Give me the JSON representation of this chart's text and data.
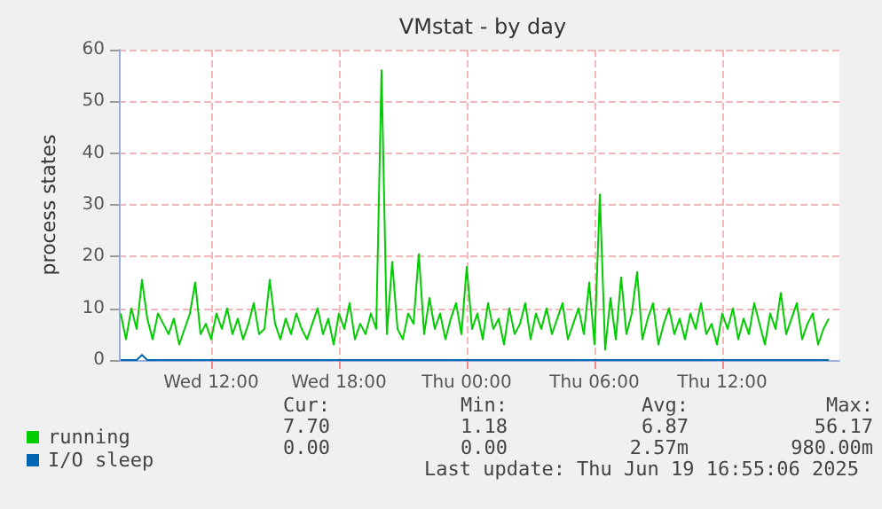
{
  "chart_data": {
    "type": "line",
    "title": "VMstat - by day",
    "ylabel": "process states",
    "x": [
      "2025-06-18T07:45",
      "2025-06-18T08:00",
      "2025-06-18T08:15",
      "2025-06-18T08:30",
      "2025-06-18T08:45",
      "2025-06-18T09:00",
      "2025-06-18T09:15",
      "2025-06-18T09:30",
      "2025-06-18T09:45",
      "2025-06-18T10:00",
      "2025-06-18T10:15",
      "2025-06-18T10:30",
      "2025-06-18T10:45",
      "2025-06-18T11:00",
      "2025-06-18T11:15",
      "2025-06-18T11:30",
      "2025-06-18T11:45",
      "2025-06-18T12:00",
      "2025-06-18T12:15",
      "2025-06-18T12:30",
      "2025-06-18T12:45",
      "2025-06-18T13:00",
      "2025-06-18T13:15",
      "2025-06-18T13:30",
      "2025-06-18T13:45",
      "2025-06-18T14:00",
      "2025-06-18T14:15",
      "2025-06-18T14:30",
      "2025-06-18T14:45",
      "2025-06-18T15:00",
      "2025-06-18T15:15",
      "2025-06-18T15:30",
      "2025-06-18T15:45",
      "2025-06-18T16:00",
      "2025-06-18T16:15",
      "2025-06-18T16:30",
      "2025-06-18T16:45",
      "2025-06-18T17:00",
      "2025-06-18T17:15",
      "2025-06-18T17:30",
      "2025-06-18T17:45",
      "2025-06-18T18:00",
      "2025-06-18T18:15",
      "2025-06-18T18:30",
      "2025-06-18T18:45",
      "2025-06-18T19:00",
      "2025-06-18T19:15",
      "2025-06-18T19:30",
      "2025-06-18T19:45",
      "2025-06-18T20:00",
      "2025-06-18T20:15",
      "2025-06-18T20:30",
      "2025-06-18T20:45",
      "2025-06-18T21:00",
      "2025-06-18T21:15",
      "2025-06-18T21:30",
      "2025-06-18T21:45",
      "2025-06-18T22:00",
      "2025-06-18T22:15",
      "2025-06-18T22:30",
      "2025-06-18T22:45",
      "2025-06-18T23:00",
      "2025-06-18T23:15",
      "2025-06-18T23:30",
      "2025-06-18T23:45",
      "2025-06-19T00:00",
      "2025-06-19T00:15",
      "2025-06-19T00:30",
      "2025-06-19T00:45",
      "2025-06-19T01:00",
      "2025-06-19T01:15",
      "2025-06-19T01:30",
      "2025-06-19T01:45",
      "2025-06-19T02:00",
      "2025-06-19T02:15",
      "2025-06-19T02:30",
      "2025-06-19T02:45",
      "2025-06-19T03:00",
      "2025-06-19T03:15",
      "2025-06-19T03:30",
      "2025-06-19T03:45",
      "2025-06-19T04:00",
      "2025-06-19T04:15",
      "2025-06-19T04:30",
      "2025-06-19T04:45",
      "2025-06-19T05:00",
      "2025-06-19T05:15",
      "2025-06-19T05:30",
      "2025-06-19T05:45",
      "2025-06-19T06:00",
      "2025-06-19T06:15",
      "2025-06-19T06:30",
      "2025-06-19T06:45",
      "2025-06-19T07:00",
      "2025-06-19T07:15",
      "2025-06-19T07:30",
      "2025-06-19T07:45",
      "2025-06-19T08:00",
      "2025-06-19T08:15",
      "2025-06-19T08:30",
      "2025-06-19T08:45",
      "2025-06-19T09:00",
      "2025-06-19T09:15",
      "2025-06-19T09:30",
      "2025-06-19T09:45",
      "2025-06-19T10:00",
      "2025-06-19T10:15",
      "2025-06-19T10:30",
      "2025-06-19T10:45",
      "2025-06-19T11:00",
      "2025-06-19T11:15",
      "2025-06-19T11:30",
      "2025-06-19T11:45",
      "2025-06-19T12:00",
      "2025-06-19T12:15",
      "2025-06-19T12:30",
      "2025-06-19T12:45",
      "2025-06-19T13:00",
      "2025-06-19T13:15",
      "2025-06-19T13:30",
      "2025-06-19T13:45",
      "2025-06-19T14:00",
      "2025-06-19T14:15",
      "2025-06-19T14:30",
      "2025-06-19T14:45",
      "2025-06-19T15:00",
      "2025-06-19T15:15",
      "2025-06-19T15:30",
      "2025-06-19T15:45",
      "2025-06-19T16:00",
      "2025-06-19T16:15",
      "2025-06-19T16:30",
      "2025-06-19T16:45",
      "2025-06-19T17:00"
    ],
    "series": [
      {
        "name": "running",
        "color": "#00cc00",
        "values": [
          9,
          4,
          10,
          6,
          15.5,
          8,
          4,
          9,
          7,
          5,
          8,
          3,
          6,
          9,
          15,
          5,
          7,
          4,
          9,
          6,
          10,
          5,
          8,
          4,
          7,
          11,
          5,
          6,
          15.5,
          7,
          4,
          8,
          5,
          9,
          6,
          4,
          7,
          10,
          5,
          8,
          3,
          9,
          6,
          11,
          4,
          7,
          5,
          9,
          6,
          56,
          5,
          19,
          6,
          4,
          9,
          7,
          20.5,
          5,
          12,
          6,
          9,
          4,
          8,
          11,
          5,
          18,
          6,
          9,
          4,
          11,
          6,
          8,
          3,
          10,
          5,
          7,
          11,
          4,
          9,
          6,
          10,
          5,
          8,
          11,
          4,
          7,
          10,
          5,
          15,
          3,
          32,
          2,
          12,
          4,
          16,
          5,
          9,
          17,
          4,
          8,
          11,
          3,
          7,
          10,
          5,
          8,
          4,
          9,
          6,
          11,
          5,
          7,
          3,
          9,
          6,
          10,
          4,
          8,
          5,
          11,
          7,
          3,
          9,
          6,
          13,
          5,
          8,
          11,
          4,
          7,
          9,
          3,
          6,
          8
        ]
      },
      {
        "name": "I/O sleep",
        "color": "#0066b3",
        "values": [
          0,
          0,
          0,
          0,
          1,
          0,
          0,
          0,
          0,
          0,
          0,
          0,
          0,
          0,
          0,
          0,
          0,
          0,
          0,
          0,
          0,
          0,
          0,
          0,
          0,
          0,
          0,
          0,
          0,
          0,
          0,
          0,
          0,
          0,
          0,
          0,
          0,
          0,
          0,
          0,
          0,
          0,
          0,
          0,
          0,
          0,
          0,
          0,
          0,
          0,
          0,
          0,
          0,
          0,
          0,
          0,
          0,
          0,
          0,
          0,
          0,
          0,
          0,
          0,
          0,
          0,
          0,
          0,
          0,
          0,
          0,
          0,
          0,
          0,
          0,
          0,
          0,
          0,
          0,
          0,
          0,
          0,
          0,
          0,
          0,
          0,
          0,
          0,
          0,
          0,
          0,
          0,
          0,
          0,
          0,
          0,
          0,
          0,
          0,
          0,
          0,
          0,
          0,
          0,
          0,
          0,
          0,
          0,
          0,
          0,
          0,
          0,
          0,
          0,
          0,
          0,
          0,
          0,
          0,
          0,
          0,
          0,
          0,
          0,
          0,
          0,
          0,
          0,
          0,
          0,
          0,
          0,
          0,
          0
        ]
      }
    ],
    "xlim": [
      "2025-06-18T07:40",
      "2025-06-19T17:30"
    ],
    "xticks": [
      {
        "value": "2025-06-18T12:00",
        "label": "Wed 12:00"
      },
      {
        "value": "2025-06-18T18:00",
        "label": "Wed 18:00"
      },
      {
        "value": "2025-06-19T00:00",
        "label": "Thu 00:00"
      },
      {
        "value": "2025-06-19T06:00",
        "label": "Thu 06:00"
      },
      {
        "value": "2025-06-19T12:00",
        "label": "Thu 12:00"
      }
    ],
    "ylim": [
      0,
      60
    ],
    "yticks": [
      0,
      10,
      20,
      30,
      40,
      50,
      60
    ],
    "grid": true,
    "legend": "bottom left",
    "marker": "none",
    "line_style": "solid",
    "annotations": [
      "Cur:",
      "Min:",
      "Avg:",
      "Max:",
      "7.70",
      "1.18",
      "6.87",
      "56.17",
      "0.00",
      "0.00",
      "2.57m",
      "980.00m",
      "Last update: Thu Jun 19 16:55:06 2025"
    ]
  }
}
